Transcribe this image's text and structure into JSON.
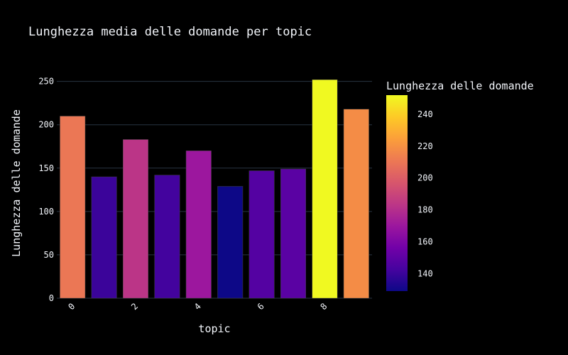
{
  "chart_data": {
    "type": "bar",
    "title": "Lunghezza media delle domande per topic",
    "xlabel": "topic",
    "ylabel": "Lunghezza delle domande",
    "categories": [
      0,
      1,
      2,
      3,
      4,
      5,
      6,
      7,
      8,
      9
    ],
    "x_tick_labels": [
      "0",
      "2",
      "4",
      "6",
      "8"
    ],
    "values": [
      210,
      140,
      183,
      142,
      170,
      129,
      147,
      149,
      252,
      218
    ],
    "ylim": [
      0,
      262
    ],
    "y_ticks": [
      0,
      50,
      100,
      150,
      200,
      250
    ],
    "grid": true,
    "colorbar": {
      "title": "Lunghezza delle domande",
      "ticks": [
        140,
        160,
        180,
        200,
        220,
        240
      ],
      "range": [
        129,
        252
      ],
      "colorscale": "plasma"
    }
  },
  "colors": {
    "background": "#000000",
    "grid": "#283442",
    "text": "#f2f5fa",
    "bar_outline": "#404040"
  }
}
